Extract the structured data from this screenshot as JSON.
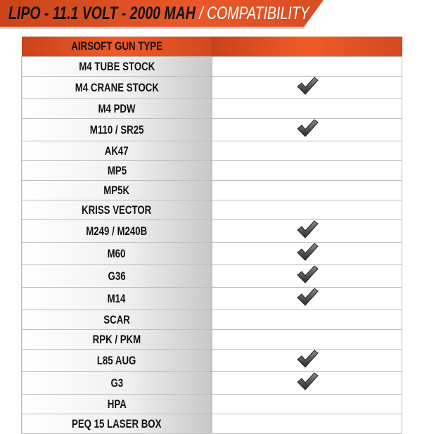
{
  "header": {
    "title_bold": "LIPO - 11.1 VOLT - 2000 MAH",
    "title_light": "/ COMPATIBILITY",
    "accent_color": "#e8582a"
  },
  "table": {
    "columns": [
      "AIRSOFT GUN TYPE",
      ""
    ],
    "rows": [
      {
        "name": "M4 TUBE STOCK",
        "compatible": false
      },
      {
        "name": "M4 CRANE STOCK",
        "compatible": true
      },
      {
        "name": "M4 PDW",
        "compatible": false
      },
      {
        "name": "M110 / SR25",
        "compatible": true
      },
      {
        "name": "AK47",
        "compatible": false
      },
      {
        "name": "MP5",
        "compatible": false
      },
      {
        "name": "MP5K",
        "compatible": false
      },
      {
        "name": "KRISS VECTOR",
        "compatible": false
      },
      {
        "name": "M249 / M240B",
        "compatible": true
      },
      {
        "name": "M60",
        "compatible": true
      },
      {
        "name": "G36",
        "compatible": true
      },
      {
        "name": "M14",
        "compatible": true
      },
      {
        "name": "SCAR",
        "compatible": false
      },
      {
        "name": "RPK / PKM",
        "compatible": false
      },
      {
        "name": "L85 AUG",
        "compatible": true
      },
      {
        "name": "G3",
        "compatible": true
      },
      {
        "name": "HPA",
        "compatible": false
      },
      {
        "name": "PEQ 15 LASER BOX",
        "compatible": false
      }
    ],
    "check_icon": "checkmark-icon"
  }
}
